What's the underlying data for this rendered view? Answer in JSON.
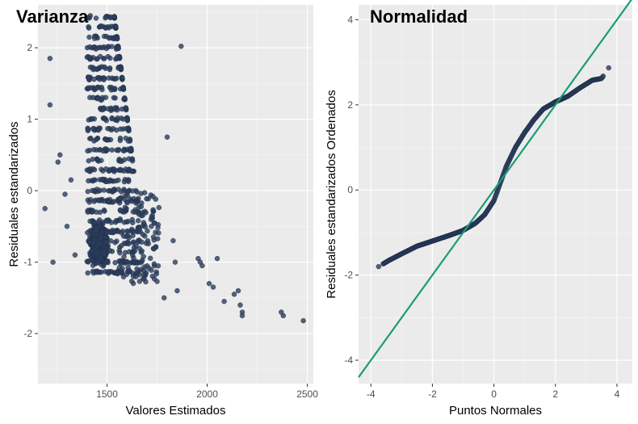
{
  "colors": {
    "panel": "#ebebeb",
    "grid_major": "#ffffff",
    "grid_minor": "#f5f5f5",
    "point": "#2c3e5e",
    "line": "#1a9c72"
  },
  "chart_data": [
    {
      "type": "scatter",
      "title": "Varianza",
      "xlabel": "Valores Estimados",
      "ylabel": "Residuales estandarizados",
      "xlim": [
        1155,
        2530
      ],
      "ylim": [
        -2.7,
        2.6
      ],
      "xticks": [
        1500,
        2000,
        2500
      ],
      "yticks": [
        -2,
        -1,
        0,
        1,
        2
      ],
      "grid": true,
      "legend": "none",
      "note_points": "main cluster roughly x 1350-1750, y -1.25 to 2.45, with sparse outliers",
      "outliers": [
        [
          1190,
          -0.25
        ],
        [
          1215,
          1.2
        ],
        [
          1215,
          1.85
        ],
        [
          1230,
          -1.0
        ],
        [
          1255,
          0.4
        ],
        [
          1265,
          0.5
        ],
        [
          1290,
          -0.05
        ],
        [
          1300,
          -0.5
        ],
        [
          1320,
          0.15
        ],
        [
          1340,
          -0.9
        ],
        [
          1785,
          -1.5
        ],
        [
          1800,
          0.75
        ],
        [
          1830,
          -0.7
        ],
        [
          1840,
          -1.0
        ],
        [
          1850,
          -1.4
        ],
        [
          1870,
          2.02
        ],
        [
          1955,
          -0.95
        ],
        [
          1965,
          -1.0
        ],
        [
          1975,
          -1.05
        ],
        [
          2010,
          -1.3
        ],
        [
          2030,
          -1.35
        ],
        [
          2050,
          -0.95
        ],
        [
          2085,
          -1.55
        ],
        [
          2135,
          -1.45
        ],
        [
          2155,
          -1.4
        ],
        [
          2165,
          -1.6
        ],
        [
          2175,
          -1.7
        ],
        [
          2175,
          -1.75
        ],
        [
          2370,
          -1.7
        ],
        [
          2380,
          -1.75
        ],
        [
          2480,
          -1.82
        ]
      ]
    },
    {
      "type": "scatter",
      "title": "Normalidad",
      "xlabel": "Puntos Normales",
      "ylabel": "Residuales estandarizados Ordenados",
      "xlim": [
        -4.4,
        4.5
      ],
      "ylim": [
        -4.55,
        4.35
      ],
      "xticks": [
        -4,
        -2,
        0,
        2,
        4
      ],
      "yticks": [
        -4,
        -2,
        0,
        2,
        4
      ],
      "grid": true,
      "legend": "none",
      "qq_line": {
        "intercept": 0.0,
        "slope": 1.0
      },
      "qq_curve": [
        [
          -3.75,
          -1.8
        ],
        [
          -3.4,
          -1.65
        ],
        [
          -3.0,
          -1.5
        ],
        [
          -2.5,
          -1.32
        ],
        [
          -2.0,
          -1.2
        ],
        [
          -1.5,
          -1.08
        ],
        [
          -1.0,
          -0.95
        ],
        [
          -0.6,
          -0.78
        ],
        [
          -0.3,
          -0.58
        ],
        [
          0.0,
          -0.25
        ],
        [
          0.2,
          0.15
        ],
        [
          0.4,
          0.55
        ],
        [
          0.7,
          1.0
        ],
        [
          1.0,
          1.35
        ],
        [
          1.3,
          1.65
        ],
        [
          1.6,
          1.9
        ],
        [
          2.0,
          2.07
        ],
        [
          2.4,
          2.2
        ],
        [
          2.8,
          2.4
        ],
        [
          3.2,
          2.58
        ],
        [
          3.5,
          2.62
        ],
        [
          3.73,
          2.87
        ]
      ]
    }
  ]
}
